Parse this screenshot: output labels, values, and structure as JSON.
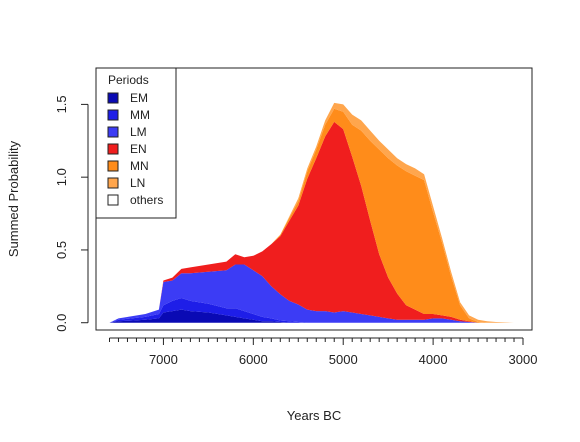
{
  "chart_data": {
    "type": "area",
    "stacked": true,
    "xlabel": "Years BC",
    "ylabel": "Summed Probability",
    "xlim": [
      7750,
      2900
    ],
    "ylim": [
      -0.05,
      1.75
    ],
    "x_reversed": true,
    "x_ticks": [
      7000,
      6000,
      5000,
      4000,
      3000
    ],
    "y_ticks": [
      0.0,
      0.5,
      1.0,
      1.5
    ],
    "y_tick_labels": [
      "0.0",
      "0.5",
      "1.0",
      "1.5"
    ],
    "x_minor_tick_step": 100,
    "grid": false,
    "legend": {
      "title": "Periods",
      "position": "top-left",
      "entries": [
        {
          "label": "EM",
          "color": "#0a0ab4"
        },
        {
          "label": "MM",
          "color": "#1e1ee8"
        },
        {
          "label": "LM",
          "color": "#3c3cf5"
        },
        {
          "label": "EN",
          "color": "#f01e1e"
        },
        {
          "label": "MN",
          "color": "#ff8c1a"
        },
        {
          "label": "LN",
          "color": "#ffa64d"
        },
        {
          "label": "others",
          "color": "#ffffff"
        }
      ]
    },
    "x": [
      7600,
      7500,
      7200,
      7050,
      7000,
      6900,
      6800,
      6700,
      6500,
      6300,
      6200,
      6100,
      6000,
      5900,
      5800,
      5700,
      5600,
      5500,
      5400,
      5300,
      5200,
      5100,
      5000,
      4900,
      4800,
      4700,
      4600,
      4500,
      4400,
      4300,
      4200,
      4100,
      4000,
      3900,
      3800,
      3700,
      3600,
      3500,
      3400,
      3300,
      3200,
      3100,
      3000
    ],
    "series": [
      {
        "name": "EM",
        "color": "#0a0ab4",
        "values": [
          0,
          0.01,
          0.02,
          0.03,
          0.07,
          0.08,
          0.09,
          0.08,
          0.07,
          0.05,
          0.04,
          0.03,
          0.02,
          0.01,
          0.01,
          0.005,
          0,
          0,
          0,
          0,
          0,
          0,
          0,
          0,
          0,
          0,
          0,
          0,
          0,
          0,
          0,
          0,
          0,
          0,
          0,
          0,
          0,
          0,
          0,
          0,
          0,
          0,
          0
        ]
      },
      {
        "name": "MM",
        "color": "#1e1ee8",
        "values": [
          0,
          0.01,
          0.02,
          0.03,
          0.05,
          0.07,
          0.08,
          0.07,
          0.06,
          0.05,
          0.06,
          0.05,
          0.04,
          0.03,
          0.02,
          0.01,
          0.01,
          0.005,
          0,
          0,
          0,
          0,
          0,
          0,
          0,
          0,
          0,
          0,
          0,
          0,
          0,
          0,
          0,
          0,
          0,
          0,
          0,
          0,
          0,
          0,
          0,
          0,
          0
        ]
      },
      {
        "name": "LM",
        "color": "#3c3cf5",
        "values": [
          0,
          0.01,
          0.02,
          0.03,
          0.16,
          0.14,
          0.17,
          0.19,
          0.22,
          0.26,
          0.3,
          0.32,
          0.3,
          0.28,
          0.22,
          0.18,
          0.14,
          0.12,
          0.09,
          0.08,
          0.08,
          0.07,
          0.08,
          0.07,
          0.06,
          0.05,
          0.04,
          0.03,
          0.02,
          0.02,
          0.02,
          0.02,
          0.03,
          0.03,
          0.02,
          0.01,
          0.005,
          0,
          0,
          0,
          0,
          0,
          0
        ]
      },
      {
        "name": "EN",
        "color": "#f01e1e",
        "values": [
          0,
          0,
          0,
          0,
          0.01,
          0.02,
          0.03,
          0.04,
          0.05,
          0.06,
          0.07,
          0.05,
          0.1,
          0.17,
          0.29,
          0.4,
          0.55,
          0.68,
          0.9,
          1.05,
          1.2,
          1.31,
          1.25,
          1.07,
          0.88,
          0.65,
          0.43,
          0.28,
          0.18,
          0.1,
          0.07,
          0.04,
          0.03,
          0.02,
          0.02,
          0.01,
          0.005,
          0,
          0,
          0,
          0,
          0,
          0
        ]
      },
      {
        "name": "MN",
        "color": "#ff8c1a",
        "values": [
          0,
          0,
          0,
          0,
          0,
          0,
          0,
          0,
          0,
          0,
          0,
          0,
          0,
          0,
          0,
          0.01,
          0.02,
          0.03,
          0.05,
          0.06,
          0.08,
          0.09,
          0.12,
          0.22,
          0.38,
          0.55,
          0.72,
          0.82,
          0.88,
          0.92,
          0.92,
          0.92,
          0.7,
          0.5,
          0.28,
          0.1,
          0.02,
          0.005,
          0,
          0,
          0,
          0,
          0
        ]
      },
      {
        "name": "LN",
        "color": "#ffa64d",
        "values": [
          0,
          0,
          0,
          0,
          0,
          0,
          0,
          0,
          0,
          0,
          0,
          0,
          0,
          0,
          0,
          0,
          0.01,
          0.02,
          0.02,
          0.02,
          0.03,
          0.04,
          0.05,
          0.07,
          0.07,
          0.07,
          0.06,
          0.06,
          0.05,
          0.05,
          0.05,
          0.04,
          0.04,
          0.03,
          0.03,
          0.02,
          0.02,
          0.015,
          0.01,
          0.005,
          0.002,
          0,
          0
        ]
      },
      {
        "name": "others",
        "color": "#ffffff",
        "values": [
          0,
          0,
          0,
          0,
          0,
          0,
          0,
          0,
          0,
          0,
          0,
          0,
          0,
          0,
          0,
          0,
          0,
          0,
          0,
          0,
          0,
          0,
          0,
          0,
          0,
          0,
          0,
          0,
          0,
          0,
          0,
          0,
          0,
          0,
          0,
          0,
          0,
          0,
          0,
          0,
          0,
          0,
          0
        ]
      }
    ]
  }
}
